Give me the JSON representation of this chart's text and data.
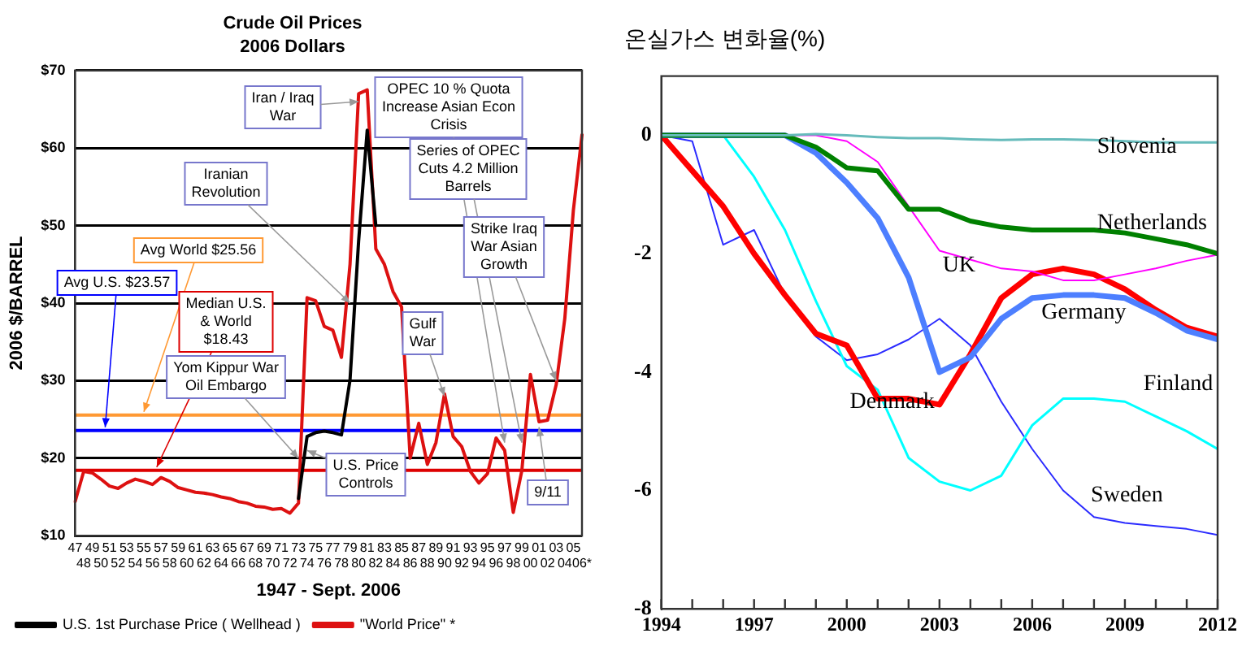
{
  "chart_data": [
    {
      "type": "line",
      "title": "Crude Oil Prices",
      "subtitle": "2006 Dollars",
      "xlabel": "1947 - Sept. 2006",
      "ylabel": "2006 $/BARREL",
      "categories": [
        "47",
        "48",
        "49",
        "50",
        "51",
        "52",
        "53",
        "54",
        "55",
        "56",
        "57",
        "58",
        "59",
        "60",
        "61",
        "62",
        "63",
        "64",
        "65",
        "66",
        "67",
        "68",
        "69",
        "70",
        "71",
        "72",
        "73",
        "74",
        "75",
        "76",
        "77",
        "78",
        "79",
        "80",
        "81",
        "82",
        "83",
        "84",
        "85",
        "86",
        "87",
        "88",
        "89",
        "90",
        "91",
        "92",
        "93",
        "94",
        "95",
        "96",
        "97",
        "98",
        "99",
        "00",
        "01",
        "02",
        "03",
        "04",
        "05",
        "06*"
      ],
      "series": [
        {
          "name": "U.S. 1st Purchase Price ( Wellhead )",
          "color": "#000000",
          "values": [
            null,
            null,
            null,
            null,
            null,
            null,
            null,
            null,
            null,
            null,
            null,
            null,
            null,
            null,
            null,
            null,
            null,
            null,
            null,
            null,
            null,
            null,
            null,
            null,
            null,
            null,
            14.8,
            22.8,
            23.3,
            23.5,
            23.3,
            23.0,
            30.1,
            48.0,
            62.3,
            50.0,
            null,
            null,
            null,
            null,
            null,
            null,
            null,
            null,
            null,
            null,
            null,
            null,
            null,
            null,
            null,
            null,
            null,
            null,
            null,
            null,
            null,
            null,
            null,
            null
          ]
        },
        {
          "name": "\"World Price\" *",
          "color": "#dd1111",
          "values": [
            14.4,
            18.3,
            18.1,
            17.3,
            16.4,
            16.1,
            16.8,
            17.3,
            17.0,
            16.6,
            17.5,
            17.0,
            16.2,
            15.9,
            15.6,
            15.5,
            15.3,
            15.0,
            14.8,
            14.4,
            14.2,
            13.8,
            13.7,
            13.4,
            13.5,
            12.9,
            14.2,
            40.7,
            40.3,
            37.0,
            36.5,
            33.0,
            45.0,
            67.0,
            67.5,
            47.0,
            45.0,
            41.5,
            39.5,
            20.0,
            24.5,
            19.2,
            22.0,
            28.3,
            22.8,
            21.5,
            18.3,
            16.8,
            18.0,
            22.6,
            21.0,
            13.0,
            18.4,
            30.8,
            24.7,
            24.9,
            29.5,
            38.0,
            52.0,
            61.7
          ]
        }
      ],
      "ylim": [
        10,
        70
      ],
      "yticks": [
        {
          "value": 10,
          "label": "$10"
        },
        {
          "value": 20,
          "label": "$20"
        },
        {
          "value": 30,
          "label": "$30"
        },
        {
          "value": 40,
          "label": "$40"
        },
        {
          "value": 50,
          "label": "$50"
        },
        {
          "value": 60,
          "label": "$60"
        },
        {
          "value": 70,
          "label": "$70"
        }
      ],
      "grid": "y",
      "legend": "bottom",
      "ref_lines": [
        {
          "axis": "y",
          "value": 25.56,
          "label": "Avg World $25.56",
          "color": "#ff9933"
        },
        {
          "axis": "y",
          "value": 23.57,
          "label": "Avg U.S. $23.57",
          "color": "#0000ff"
        },
        {
          "axis": "y",
          "value": 18.43,
          "label": "Median U.S. & World $18.43",
          "color": "#dd0000"
        }
      ],
      "annotations": [
        {
          "text": "Iran / Iraq War",
          "x": "80",
          "y": 66
        },
        {
          "text": "OPEC 10 % Quota Increase Asian Econ Crisis",
          "x": "97",
          "y": 22
        },
        {
          "text": "Series of OPEC Cuts 4.2 Million Barrels",
          "x": "99",
          "y": 22
        },
        {
          "text": "Iranian Revolution",
          "x": "79",
          "y": 40
        },
        {
          "text": "Strike Iraq War Asian Growth",
          "x": "03",
          "y": 30
        },
        {
          "text": "Gulf War",
          "x": "90",
          "y": 28
        },
        {
          "text": "Yom Kippur War Oil Embargo",
          "x": "73",
          "y": 20
        },
        {
          "text": "U.S. Price Controls",
          "x": "74",
          "y": 21
        },
        {
          "text": "9/11",
          "x": "01",
          "y": 24
        }
      ]
    },
    {
      "type": "line",
      "title": "온실가스 변화율(%)",
      "x": [
        1994,
        1995,
        1996,
        1997,
        1998,
        1999,
        2000,
        2001,
        2002,
        2003,
        2004,
        2005,
        2006,
        2007,
        2008,
        2009,
        2010,
        2011,
        2012
      ],
      "series": [
        {
          "name": "Slovenia",
          "color": "#66bbbb",
          "values": [
            0,
            0,
            0,
            0,
            0,
            0.02,
            0,
            -0.03,
            -0.05,
            -0.05,
            -0.07,
            -0.08,
            -0.07,
            -0.07,
            -0.08,
            -0.1,
            -0.12,
            -0.12,
            -0.12
          ]
        },
        {
          "name": "Netherlands",
          "color": "#008000",
          "values": [
            0,
            0,
            0,
            0,
            0,
            -0.2,
            -0.55,
            -0.6,
            -1.25,
            -1.25,
            -1.45,
            -1.55,
            -1.6,
            -1.6,
            -1.6,
            -1.65,
            -1.75,
            -1.85,
            -2.0
          ]
        },
        {
          "name": "UK",
          "color": "#ff00ff",
          "values": [
            null,
            null,
            null,
            null,
            0,
            0,
            -0.1,
            -0.45,
            -1.2,
            -1.95,
            -2.1,
            -2.25,
            -2.3,
            -2.45,
            -2.45,
            -2.35,
            -2.25,
            -2.12,
            -2.02
          ]
        },
        {
          "name": "Germany",
          "color": "#4d7fff",
          "values": [
            0,
            0,
            0,
            0,
            0,
            -0.3,
            -0.8,
            -1.4,
            -2.4,
            -4.0,
            -3.75,
            -3.1,
            -2.75,
            -2.7,
            -2.7,
            -2.75,
            -3.0,
            -3.3,
            -3.45
          ]
        },
        {
          "name": "Denmark",
          "color": "#ff0000",
          "values": [
            0,
            -0.6,
            -1.2,
            -2.0,
            -2.7,
            -3.35,
            -3.55,
            -4.45,
            -4.45,
            -4.55,
            -3.7,
            -2.75,
            -2.35,
            -2.25,
            -2.35,
            -2.6,
            -2.95,
            -3.25,
            -3.4
          ]
        },
        {
          "name": "Finland",
          "color": "#00ffff",
          "values": [
            0,
            0,
            0,
            -0.7,
            -1.6,
            -2.8,
            -3.9,
            -4.3,
            -5.45,
            -5.85,
            -6.0,
            -5.75,
            -4.9,
            -4.45,
            -4.45,
            -4.5,
            -4.75,
            -5.0,
            -5.3
          ]
        },
        {
          "name": "Sweden",
          "color": "#2b2bff",
          "values": [
            0,
            -0.1,
            -1.85,
            -1.6,
            -2.7,
            -3.4,
            -3.8,
            -3.7,
            -3.45,
            -3.1,
            -3.55,
            -4.5,
            -5.3,
            -6.0,
            -6.45,
            -6.55,
            -6.6,
            -6.65,
            -6.75
          ]
        }
      ],
      "xlim": [
        1994,
        2012
      ],
      "xticks": [
        1994,
        {
          "value": 1995,
          "label": null
        },
        {
          "value": 1996,
          "label": null
        },
        1997,
        {
          "value": 1998,
          "label": null
        },
        {
          "value": 1999,
          "label": null
        },
        2000,
        {
          "value": 2001,
          "label": null
        },
        {
          "value": 2002,
          "label": null
        },
        2003,
        {
          "value": 2004,
          "label": null
        },
        {
          "value": 2005,
          "label": null
        },
        2006,
        {
          "value": 2007,
          "label": null
        },
        {
          "value": 2008,
          "label": null
        },
        2009,
        {
          "value": 2010,
          "label": null
        },
        {
          "value": 2011,
          "label": null
        },
        2012
      ],
      "ylim": [
        -8,
        1
      ],
      "yticks": [
        -8,
        -6,
        -4,
        -2,
        0
      ],
      "grid": false,
      "legend": false
    }
  ]
}
